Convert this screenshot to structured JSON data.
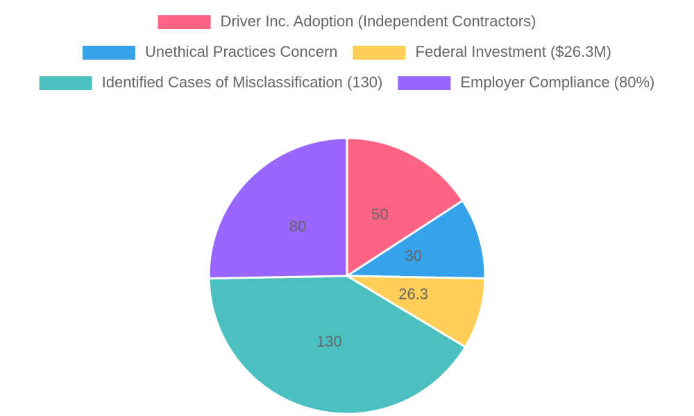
{
  "chart_data": {
    "type": "pie",
    "categories": [
      "Driver Inc. Adoption (Independent Contractors)",
      "Unethical Practices Concern",
      "Federal Investment ($26.3M)",
      "Identified Cases of Misclassification (130)",
      "Employer Compliance (80%)"
    ],
    "values": [
      50,
      30,
      26.3,
      130,
      80
    ],
    "colors": [
      "#ff6384",
      "#36a2eb",
      "#ffce56",
      "#4bc0c0",
      "#9966ff"
    ],
    "legend": "top"
  }
}
